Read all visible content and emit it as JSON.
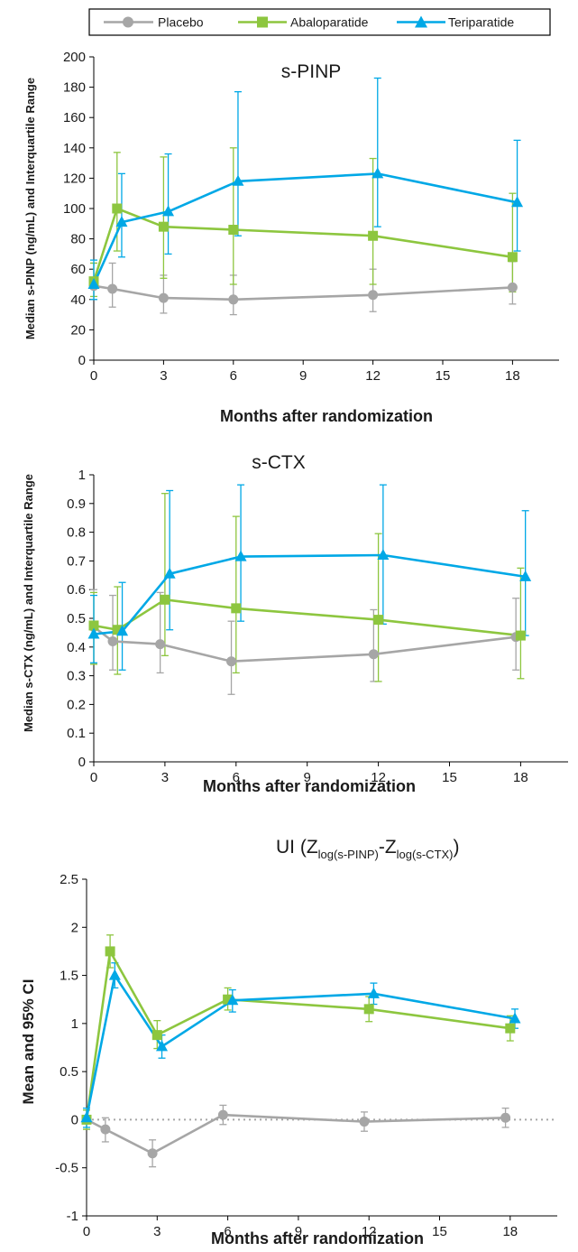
{
  "legend": [
    {
      "name": "Placebo",
      "color": "#a6a6a6",
      "marker": "circle"
    },
    {
      "name": "Abaloparatide",
      "color": "#8dc63f",
      "marker": "square"
    },
    {
      "name": "Teriparatide",
      "color": "#00a8e6",
      "marker": "triangle"
    }
  ],
  "chart_data": [
    {
      "type": "line",
      "title": "s-PINP",
      "xlabel": "Months after randomization",
      "ylabel": "Median s-PINP (ng/mL) and Interquartile Range",
      "xlim": [
        0,
        20
      ],
      "ylim": [
        0,
        200
      ],
      "xticks": [
        0,
        3,
        6,
        9,
        12,
        15,
        18
      ],
      "yticks": [
        0,
        20,
        40,
        60,
        80,
        100,
        120,
        140,
        160,
        180,
        200
      ],
      "ytick_labels": [
        "0",
        "20",
        "40",
        "60",
        "80",
        "100",
        "120",
        "140",
        "160",
        "180",
        "200"
      ],
      "grid": false,
      "legend_position": "top",
      "series": [
        {
          "name": "Placebo",
          "x": [
            0,
            0.8,
            3,
            6,
            12,
            18
          ],
          "y": [
            49,
            47,
            41,
            40,
            43,
            48
          ],
          "low": [
            40,
            35,
            31,
            30,
            32,
            37
          ],
          "high": [
            64,
            64,
            56,
            56,
            60,
            65
          ]
        },
        {
          "name": "Abaloparatide",
          "x": [
            0,
            1,
            3,
            6,
            12,
            18
          ],
          "y": [
            52,
            100,
            88,
            86,
            82,
            68
          ],
          "low": [
            42,
            72,
            54,
            50,
            50,
            45
          ],
          "high": [
            64,
            137,
            134,
            140,
            133,
            110
          ]
        },
        {
          "name": "Teriparatide",
          "x": [
            0,
            1.2,
            3.2,
            6.2,
            12.2,
            18.2
          ],
          "y": [
            50,
            91,
            98,
            118,
            123,
            104
          ],
          "low": [
            40,
            68,
            70,
            82,
            88,
            72
          ],
          "high": [
            66,
            123,
            136,
            177,
            186,
            145
          ]
        }
      ]
    },
    {
      "type": "line",
      "title": "s-CTX",
      "xlabel": "Months after randomization",
      "ylabel": "Median s-CTX (ng/mL) and Interquartile Range",
      "xlim": [
        0,
        20
      ],
      "ylim": [
        0,
        1
      ],
      "xticks": [
        0,
        3,
        6,
        9,
        12,
        15,
        18
      ],
      "yticks": [
        0,
        0.1,
        0.2,
        0.3,
        0.4,
        0.5,
        0.6,
        0.7,
        0.8,
        0.9,
        1
      ],
      "ytick_labels": [
        "0",
        "0.1",
        "0.2",
        "0.3",
        "0.4",
        "0.5",
        "0.6",
        "0.7",
        "0.8",
        "0.9",
        "1"
      ],
      "grid": false,
      "series": [
        {
          "name": "Placebo",
          "x": [
            0,
            0.8,
            2.8,
            5.8,
            11.8,
            17.8
          ],
          "y": [
            0.47,
            0.42,
            0.41,
            0.35,
            0.375,
            0.435
          ],
          "low": [
            0.34,
            0.32,
            0.31,
            0.235,
            0.28,
            0.32
          ],
          "high": [
            0.6,
            0.58,
            0.59,
            0.49,
            0.53,
            0.57
          ]
        },
        {
          "name": "Abaloparatide",
          "x": [
            0,
            1,
            3,
            6,
            12,
            18
          ],
          "y": [
            0.475,
            0.46,
            0.565,
            0.535,
            0.495,
            0.44
          ],
          "low": [
            0.34,
            0.305,
            0.37,
            0.31,
            0.28,
            0.29
          ],
          "high": [
            0.59,
            0.61,
            0.935,
            0.855,
            0.795,
            0.675
          ]
        },
        {
          "name": "Teriparatide",
          "x": [
            0,
            1.2,
            3.2,
            6.2,
            12.2,
            18.2
          ],
          "y": [
            0.445,
            0.455,
            0.655,
            0.715,
            0.72,
            0.645
          ],
          "low": [
            0.345,
            0.32,
            0.46,
            0.49,
            0.48,
            0.44
          ],
          "high": [
            0.58,
            0.625,
            0.945,
            0.965,
            0.965,
            0.875
          ]
        }
      ]
    },
    {
      "type": "line",
      "title": "UI (Z",
      "title_sub1": "log(s-PINP)",
      "title_mid": "-Z",
      "title_sub2": "log(s-CTX)",
      "title_end": ")",
      "xlabel": "Months after randomization",
      "ylabel": "Mean and 95% CI",
      "xlim": [
        0,
        20
      ],
      "ylim": [
        -1,
        2.5
      ],
      "xticks": [
        0,
        3,
        6,
        9,
        12,
        15,
        18
      ],
      "yticks": [
        -1,
        -0.5,
        0,
        0.5,
        1,
        1.5,
        2,
        2.5
      ],
      "ytick_labels": [
        "-1",
        "-0.5",
        "0",
        "0.5",
        "1",
        "1.5",
        "2",
        "2.5"
      ],
      "reference_line": 0,
      "grid": false,
      "series": [
        {
          "name": "Placebo",
          "x": [
            0,
            0.8,
            2.8,
            5.8,
            11.8,
            17.8
          ],
          "y": [
            0,
            -0.1,
            -0.35,
            0.05,
            -0.02,
            0.02
          ],
          "low": [
            -0.1,
            -0.23,
            -0.49,
            -0.05,
            -0.12,
            -0.08
          ],
          "high": [
            0.1,
            0.02,
            -0.21,
            0.15,
            0.08,
            0.12
          ]
        },
        {
          "name": "Abaloparatide",
          "x": [
            0,
            1,
            3,
            6,
            12,
            18
          ],
          "y": [
            0,
            1.75,
            0.88,
            1.25,
            1.15,
            0.95
          ],
          "low": [
            -0.1,
            1.58,
            0.74,
            1.14,
            1.02,
            0.82
          ],
          "high": [
            0.1,
            1.92,
            1.03,
            1.37,
            1.28,
            1.08
          ]
        },
        {
          "name": "Teriparatide",
          "x": [
            0,
            1.2,
            3.2,
            6.2,
            12.2,
            18.2
          ],
          "y": [
            0.02,
            1.5,
            0.76,
            1.24,
            1.31,
            1.05
          ],
          "low": [
            -0.08,
            1.37,
            0.64,
            1.12,
            1.2,
            0.95
          ],
          "high": [
            0.12,
            1.63,
            0.88,
            1.35,
            1.42,
            1.15
          ]
        }
      ]
    }
  ]
}
